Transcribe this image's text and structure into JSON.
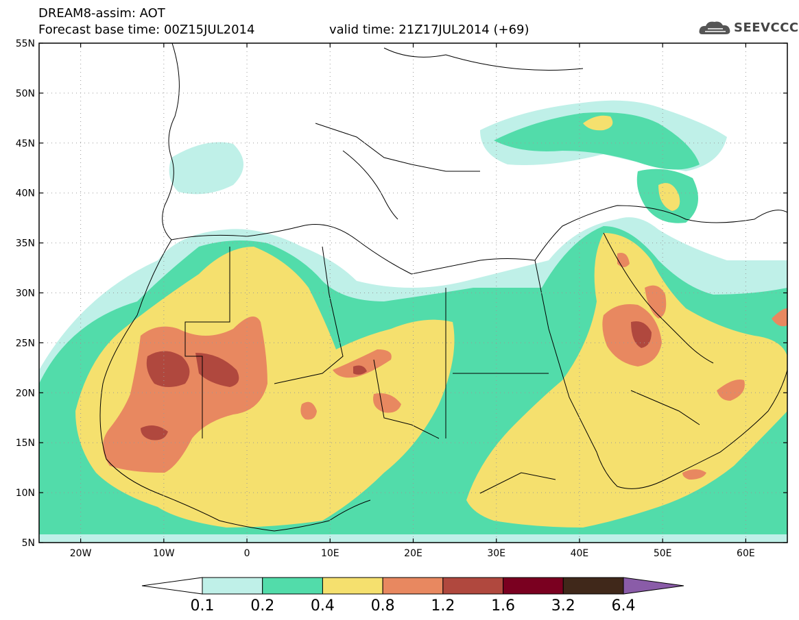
{
  "header": {
    "title_line1": "DREAM8-assim: AOT",
    "title_line2": "Forecast base time: 00Z15JUL2014",
    "valid_time": "valid time: 21Z17JUL2014 (+69)",
    "logo_text": "SEEVCCC",
    "logo_icon": "cloud-icon"
  },
  "map": {
    "lat_labels": [
      "55N",
      "50N",
      "45N",
      "40N",
      "35N",
      "30N",
      "25N",
      "20N",
      "15N",
      "10N",
      "5N"
    ],
    "lon_labels": [
      "20W",
      "10W",
      "0",
      "10E",
      "20E",
      "30E",
      "40E",
      "50E",
      "60E"
    ],
    "lat_values": [
      55,
      50,
      45,
      40,
      35,
      30,
      25,
      20,
      15,
      10,
      5
    ],
    "lon_values": [
      -20,
      -10,
      0,
      10,
      20,
      30,
      40,
      50,
      60
    ],
    "lon_range": [
      -25,
      65
    ],
    "lat_range": [
      5,
      55
    ],
    "grid": "dotted"
  },
  "colorbar": {
    "labels": [
      "0.1",
      "0.2",
      "0.4",
      "0.8",
      "1.2",
      "1.6",
      "3.2",
      "6.4"
    ],
    "colors": [
      "#ffffff",
      "#bff0e8",
      "#52dcaa",
      "#f5e06e",
      "#e88860",
      "#b0483e",
      "#7a0020",
      "#40281a",
      "#8a5ca8"
    ]
  }
}
